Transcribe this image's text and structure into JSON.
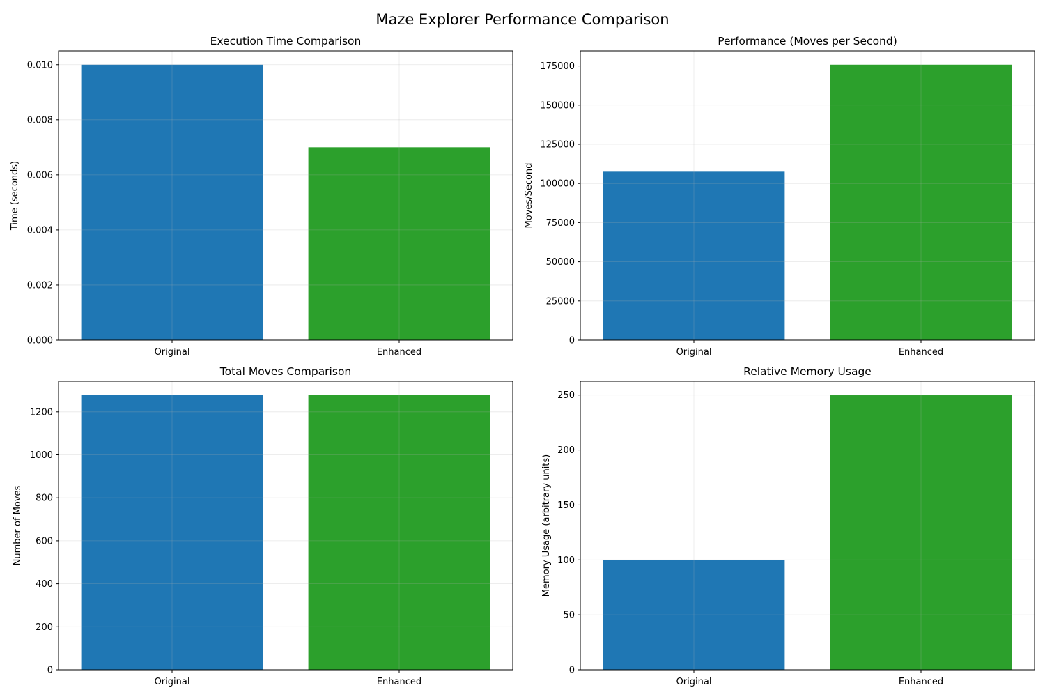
{
  "figure": {
    "suptitle": "Maze Explorer Performance Comparison",
    "colors": {
      "original": "#1f77b4",
      "enhanced": "#2ca02c",
      "grid": "#e6e6e6"
    }
  },
  "chart_data": [
    {
      "type": "bar",
      "title": "Execution Time Comparison",
      "xlabel": "",
      "ylabel": "Time (seconds)",
      "categories": [
        "Original",
        "Enhanced"
      ],
      "values": [
        0.01,
        0.007
      ],
      "colors": [
        "#1f77b4",
        "#2ca02c"
      ],
      "ylim": [
        0,
        0.0105
      ],
      "yticks": [
        0,
        0.002,
        0.004,
        0.006,
        0.008,
        0.01
      ],
      "ytick_labels": [
        "0.000",
        "0.002",
        "0.004",
        "0.006",
        "0.008",
        "0.010"
      ],
      "grid": true
    },
    {
      "type": "bar",
      "title": "Performance (Moves per Second)",
      "xlabel": "",
      "ylabel": "Moves/Second",
      "categories": [
        "Original",
        "Enhanced"
      ],
      "values": [
        107500,
        175800
      ],
      "colors": [
        "#1f77b4",
        "#2ca02c"
      ],
      "ylim": [
        0,
        184600
      ],
      "yticks": [
        0,
        25000,
        50000,
        75000,
        100000,
        125000,
        150000,
        175000
      ],
      "ytick_labels": [
        "0",
        "25000",
        "50000",
        "75000",
        "100000",
        "125000",
        "150000",
        "175000"
      ],
      "grid": true
    },
    {
      "type": "bar",
      "title": "Total Moves Comparison",
      "xlabel": "",
      "ylabel": "Number of Moves",
      "categories": [
        "Original",
        "Enhanced"
      ],
      "values": [
        1278,
        1278
      ],
      "colors": [
        "#1f77b4",
        "#2ca02c"
      ],
      "ylim": [
        0,
        1342
      ],
      "yticks": [
        0,
        200,
        400,
        600,
        800,
        1000,
        1200
      ],
      "ytick_labels": [
        "0",
        "200",
        "400",
        "600",
        "800",
        "1000",
        "1200"
      ],
      "grid": true
    },
    {
      "type": "bar",
      "title": "Relative Memory Usage",
      "xlabel": "",
      "ylabel": "Memory Usage (arbitrary units)",
      "categories": [
        "Original",
        "Enhanced"
      ],
      "values": [
        100,
        250
      ],
      "colors": [
        "#1f77b4",
        "#2ca02c"
      ],
      "ylim": [
        0,
        262.5
      ],
      "yticks": [
        0,
        50,
        100,
        150,
        200,
        250
      ],
      "ytick_labels": [
        "0",
        "50",
        "100",
        "150",
        "200",
        "250"
      ],
      "grid": true
    }
  ]
}
